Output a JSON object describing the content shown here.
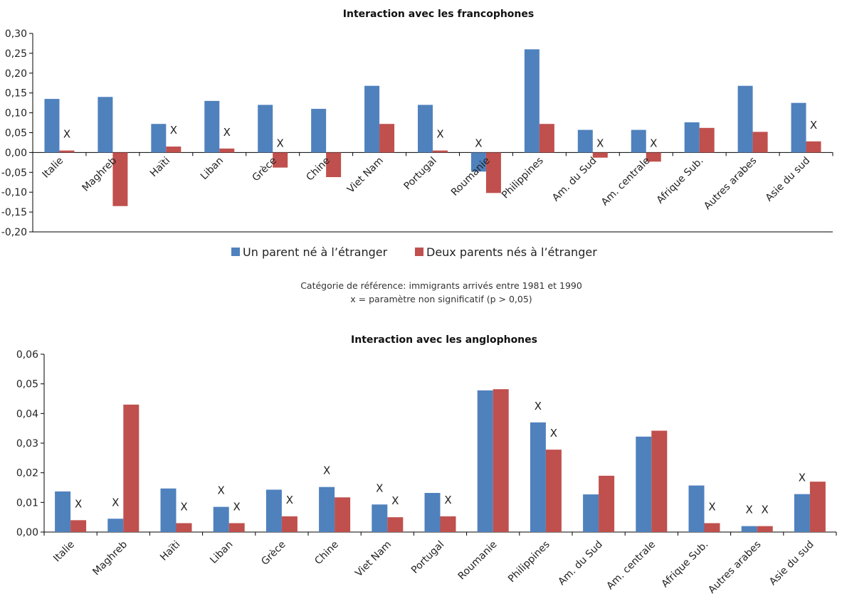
{
  "colors": {
    "series1": "#4F81BD",
    "series2": "#C0504D",
    "axis": "#000000"
  },
  "legend": {
    "s1": "Un parent né à l’étranger",
    "s2": "Deux parents nés à l’étranger"
  },
  "notes": {
    "line1": "Catégorie de  référence: immigrants arrivés entre 1981 et 1990",
    "line2": "x = paramètre non significatif  (p > 0,05)"
  },
  "chart_data": [
    {
      "type": "bar",
      "title": "Interaction avec les francophones",
      "categories": [
        "Italie",
        "Maghreb",
        "Haïti",
        "Liban",
        "Grèce",
        "Chine",
        "Viet Nam",
        "Portugal",
        "Roumanie",
        "Philippines",
        "Am. du Sud",
        "Am. centrale",
        "Afrique Sub.",
        "Autres arabes",
        "Asie du sud"
      ],
      "series": [
        {
          "name": "Un parent né à l’étranger",
          "values": [
            0.135,
            0.14,
            0.072,
            0.13,
            0.12,
            0.11,
            0.168,
            0.12,
            -0.048,
            0.26,
            0.057,
            0.057,
            0.076,
            0.168,
            0.125
          ]
        },
        {
          "name": "Deux parents nés à l’étranger",
          "values": [
            0.005,
            -0.135,
            0.015,
            0.01,
            -0.038,
            -0.062,
            0.072,
            0.005,
            -0.102,
            0.072,
            -0.013,
            -0.023,
            0.062,
            0.052,
            0.028
          ]
        }
      ],
      "non_significant_label": "X",
      "non_significant": [
        {
          "category": "Italie",
          "series": 1
        },
        {
          "category": "Haïti",
          "series": 1
        },
        {
          "category": "Liban",
          "series": 1
        },
        {
          "category": "Grèce",
          "series": 1
        },
        {
          "category": "Portugal",
          "series": 1
        },
        {
          "category": "Roumanie",
          "series": 0
        },
        {
          "category": "Am. du Sud",
          "series": 1
        },
        {
          "category": "Am. centrale",
          "series": 1
        },
        {
          "category": "Asie du sud",
          "series": 1
        }
      ],
      "ylim": [
        -0.2,
        0.3
      ],
      "yticks": [
        0.3,
        0.25,
        0.2,
        0.15,
        0.1,
        0.05,
        0.0,
        -0.05,
        -0.1,
        -0.15,
        -0.2
      ],
      "ytick_labels": [
        "0,30",
        "0,25",
        "0,20",
        "0,15",
        "0,10",
        "0,05",
        "0,00",
        "-0,05",
        "-0,10",
        "-0,15",
        "-0,20"
      ],
      "grid": false,
      "legend": "bottom"
    },
    {
      "type": "bar",
      "title": "Interaction avec les anglophones",
      "categories": [
        "Italie",
        "Maghreb",
        "Haïti",
        "Liban",
        "Grèce",
        "Chine",
        "Viet Nam",
        "Portugal",
        "Roumanie",
        "Philippines",
        "Am. du Sud",
        "Am. centrale",
        "Afrique Sub.",
        "Autres arabes",
        "Asie du sud"
      ],
      "series": [
        {
          "name": "Un parent né à l’étranger",
          "values": [
            0.0137,
            0.0045,
            0.0147,
            0.0085,
            0.0143,
            0.0152,
            0.0093,
            0.0132,
            0.0478,
            0.037,
            0.0127,
            0.0322,
            0.0157,
            0.002,
            0.0128
          ]
        },
        {
          "name": "Deux parents nés à l’étranger",
          "values": [
            0.004,
            0.043,
            0.003,
            0.003,
            0.0053,
            0.0117,
            0.005,
            0.0053,
            0.0482,
            0.0278,
            0.019,
            0.0342,
            0.003,
            0.002,
            0.017
          ]
        }
      ],
      "non_significant_label": "X",
      "non_significant": [
        {
          "category": "Italie",
          "series": 1
        },
        {
          "category": "Maghreb",
          "series": 0
        },
        {
          "category": "Haïti",
          "series": 1
        },
        {
          "category": "Liban",
          "series": 0
        },
        {
          "category": "Liban",
          "series": 1
        },
        {
          "category": "Grèce",
          "series": 1
        },
        {
          "category": "Chine",
          "series": 0
        },
        {
          "category": "Viet Nam",
          "series": 0
        },
        {
          "category": "Viet Nam",
          "series": 1
        },
        {
          "category": "Portugal",
          "series": 1
        },
        {
          "category": "Philippines",
          "series": 0
        },
        {
          "category": "Philippines",
          "series": 1
        },
        {
          "category": "Afrique Sub.",
          "series": 1
        },
        {
          "category": "Autres arabes",
          "series": 0
        },
        {
          "category": "Autres arabes",
          "series": 1
        },
        {
          "category": "Asie du sud",
          "series": 0
        }
      ],
      "ylim": [
        0,
        0.06
      ],
      "yticks": [
        0.06,
        0.05,
        0.04,
        0.03,
        0.02,
        0.01,
        0.0
      ],
      "ytick_labels": [
        "0,06",
        "0,05",
        "0,04",
        "0,03",
        "0,02",
        "0,01",
        "0,00"
      ],
      "grid": false,
      "legend": "none"
    }
  ]
}
